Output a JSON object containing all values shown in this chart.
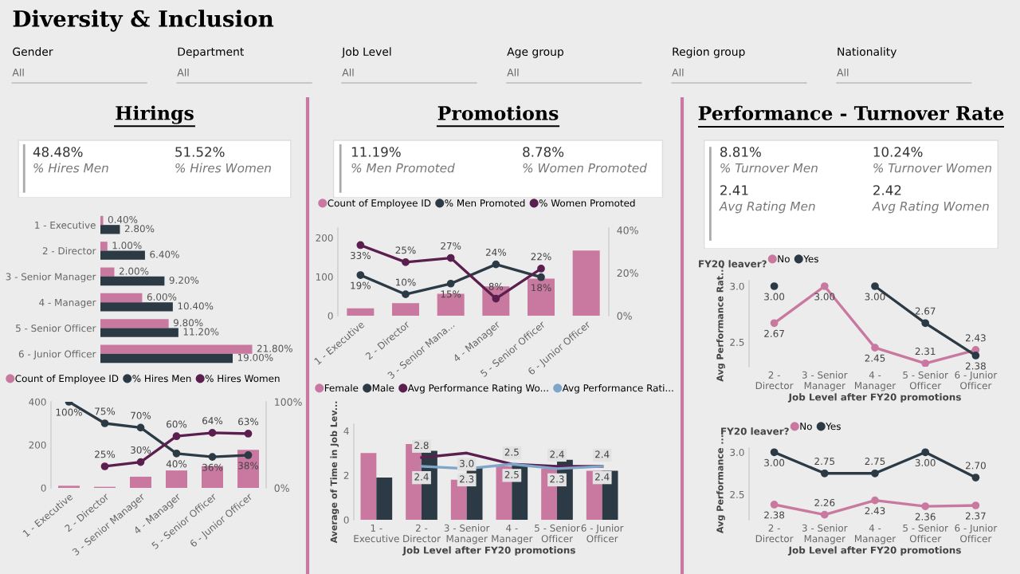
{
  "chart_data": [
    {
      "type": "other",
      "title": "Diversity & Inclusion",
      "annotations": [
        "Gender",
        "All",
        "Department",
        "All",
        "Job Level",
        "All",
        "Age group",
        "All",
        "Region group",
        "All",
        "Nationality",
        "All"
      ]
    },
    {
      "type": "other",
      "title": "Hirings",
      "annotations": [
        "48.48%",
        "% Hires Men",
        "51.52%",
        "% Hires Women"
      ]
    },
    {
      "type": "bar",
      "orientation": "horizontal",
      "categories": [
        "1 - Executive",
        "2 - Director",
        "3 - Senior Manager",
        "4 - Manager",
        "5 - Senior Officer",
        "6 - Junior Officer"
      ],
      "tick_labels": "y",
      "series": [
        {
          "color": "#c9789f",
          "values": [
            0.4,
            1.0,
            2.0,
            6.0,
            9.8,
            21.8
          ],
          "value_labels": [
            "0.40%",
            "1.00%",
            "2.00%",
            "6.00%",
            "9.80%",
            "21.80%"
          ]
        },
        {
          "color": "#2b3a45",
          "values": [
            2.8,
            6.4,
            9.2,
            10.4,
            11.2,
            19.0
          ],
          "value_labels": [
            "2.80%",
            "6.40%",
            "9.20%",
            "10.40%",
            "11.20%",
            "19.00%"
          ]
        }
      ]
    },
    {
      "type": "bar",
      "categories": [
        "1 - Executive",
        "2 - Director",
        "3 - Senior Manager",
        "4 - Manager",
        "5 - Senior Officer",
        "6 - Junior Officer"
      ],
      "ylim": [
        0,
        400
      ],
      "yticks": [
        0,
        200,
        400
      ],
      "y2lim": [
        0,
        100
      ],
      "y2ticks": [
        {
          "value": 0,
          "label": "0%"
        },
        {
          "value": 100,
          "label": "100%"
        }
      ],
      "legend": "top left",
      "marker": "circle",
      "series": [
        {
          "name": "Count of Employee ID",
          "type": "bar",
          "color": "#c9789f",
          "values": [
            10,
            5,
            52,
            81,
            102,
            177
          ]
        },
        {
          "name": "% Hires Men",
          "type": "line",
          "axis": "y2",
          "color": "#2b3a45",
          "values": [
            100,
            75,
            70,
            40,
            36,
            38
          ],
          "value_labels": [
            "100%",
            "75%",
            "70%",
            "40%",
            "36%",
            "38%"
          ]
        },
        {
          "name": "% Hires Women",
          "type": "line",
          "axis": "y2",
          "color": "#5b1f4f",
          "values": [
            null,
            25,
            30,
            60,
            64,
            63
          ],
          "value_labels": [
            null,
            "25%",
            "30%",
            "60%",
            "64%",
            "63%"
          ]
        }
      ]
    },
    {
      "type": "other",
      "title": "Promotions",
      "annotations": [
        "11.19%",
        "% Men Promoted",
        "8.78%",
        "% Women Promoted"
      ]
    },
    {
      "type": "bar",
      "categories": [
        "1 - Executive",
        "2 - Director",
        "3 - Senior Mana...",
        "4 - Manager",
        "5 - Senior Officer",
        "6 - Junior Officer"
      ],
      "ylim": [
        0,
        225
      ],
      "yticks": [
        0,
        100,
        200
      ],
      "y2lim": [
        0,
        41
      ],
      "y2ticks": [
        {
          "value": 0,
          "label": "0%"
        },
        {
          "value": 20,
          "label": "20%"
        },
        {
          "value": 40,
          "label": "40%"
        }
      ],
      "legend": "top left",
      "marker": "circle",
      "series": [
        {
          "name": "Count of Employee ID",
          "type": "bar",
          "color": "#c9789f",
          "values": [
            19,
            32,
            56,
            75,
            95,
            167
          ]
        },
        {
          "name": "% Men Promoted",
          "type": "line",
          "axis": "y2",
          "color": "#2b3a45",
          "values": [
            19,
            10,
            15,
            24,
            18,
            null
          ],
          "value_labels": [
            "19%",
            "10%",
            "15%",
            "24%",
            "18%",
            null
          ]
        },
        {
          "name": "% Women Promoted",
          "type": "line",
          "axis": "y2",
          "color": "#5b1f4f",
          "values": [
            33,
            25,
            27,
            8,
            22,
            null
          ],
          "value_labels": [
            "33%",
            "25%",
            "27%",
            "8%",
            "22%",
            null
          ]
        }
      ]
    },
    {
      "type": "bar",
      "categories": [
        "1 -\nExecutive",
        "2 -\nDirector",
        "3 - Senior\nManager",
        "4 -\nManager",
        "5 - Senior\nOfficer",
        "6 - Junior\nOfficer"
      ],
      "xlabel": "Job Level after FY20 promotions",
      "ylabel": "Average of Time in Job Lev...",
      "ylim": [
        0,
        4.3
      ],
      "yticks": [
        0,
        2,
        4
      ],
      "legend": "top left",
      "series": [
        {
          "name": "Female",
          "type": "bar",
          "color": "#c9789f",
          "values": [
            3.0,
            3.4,
            1.8,
            2.4,
            2.3,
            2.2
          ]
        },
        {
          "name": "Male",
          "type": "bar",
          "color": "#2b3a45",
          "values": [
            1.9,
            3.1,
            2.4,
            2.5,
            2.7,
            2.2
          ]
        },
        {
          "name": "Avg Performance Rating Wo...",
          "type": "line",
          "color": "#5b1f4f",
          "values": [
            null,
            2.8,
            3.0,
            2.5,
            2.4,
            2.4
          ],
          "value_labels": [
            null,
            "2.8",
            "3.0",
            "2.5",
            "2.4",
            "2.4"
          ]
        },
        {
          "name": "Avg Performance Rati...",
          "type": "line",
          "color": "#7fa6c9",
          "values": [
            null,
            2.4,
            2.3,
            2.5,
            2.3,
            2.4
          ],
          "value_labels": [
            null,
            "2.4",
            "2.3",
            "2.5",
            "2.3",
            "2.4"
          ]
        }
      ]
    },
    {
      "type": "other",
      "title": "Performance - Turnover Rate",
      "annotations": [
        "8.81%",
        "% Turnover Men",
        "10.24%",
        "% Turnover Women",
        "2.41",
        "Avg Rating Men",
        "2.42",
        "Avg Rating Women"
      ]
    },
    {
      "type": "line",
      "categories": [
        "2 -\nDirector",
        "3 - Senior\nManager",
        "4 -\nManager",
        "5 - Senior\nOfficer",
        "6 - Junior\nOfficer"
      ],
      "xlabel": "Job Level after FY20 promotions",
      "ylabel": "Avg Performance Rat...",
      "legend_title": "FY20 leaver?",
      "legend": "top left",
      "marker": "circle",
      "ylim": [
        2.28,
        3.05
      ],
      "yticks": [
        2.5,
        {
          "value": 3,
          "label": "3.0"
        }
      ],
      "series": [
        {
          "name": "No",
          "color": "#c9789f",
          "values": [
            2.67,
            3.0,
            2.45,
            2.31,
            2.43
          ],
          "value_labels": [
            "2.67",
            "3.00",
            "2.45",
            "2.31",
            "2.43"
          ]
        },
        {
          "name": "Yes",
          "color": "#2b3a45",
          "values": [
            3.0,
            null,
            3.0,
            2.67,
            2.38
          ],
          "value_labels": [
            "3.00",
            null,
            "3.00",
            "2.67",
            "2.38"
          ]
        }
      ]
    },
    {
      "type": "line",
      "categories": [
        "2 -\nDirector",
        "3 - Senior\nManager",
        "4 -\nManager",
        "5 - Senior\nOfficer",
        "6 - Junior\nOfficer"
      ],
      "xlabel": "Job Level after FY20 promotions",
      "ylabel": "Avg Performance ...",
      "legend_title": "FY20 leaver?",
      "legend": "top left",
      "marker": "circle",
      "ylim": [
        2.2,
        3.05
      ],
      "yticks": [
        2.5,
        {
          "value": 3,
          "label": "3.0"
        }
      ],
      "series": [
        {
          "name": "No",
          "color": "#c9789f",
          "values": [
            2.38,
            2.26,
            2.43,
            2.36,
            2.37
          ],
          "value_labels": [
            "2.38",
            "2.26",
            "2.43",
            "2.36",
            "2.37"
          ]
        },
        {
          "name": "Yes",
          "color": "#2b3a45",
          "values": [
            3.0,
            2.75,
            2.75,
            3.0,
            2.7
          ],
          "value_labels": [
            "3.00",
            "2.75",
            "2.75",
            "3.00",
            "2.70"
          ]
        }
      ]
    }
  ]
}
